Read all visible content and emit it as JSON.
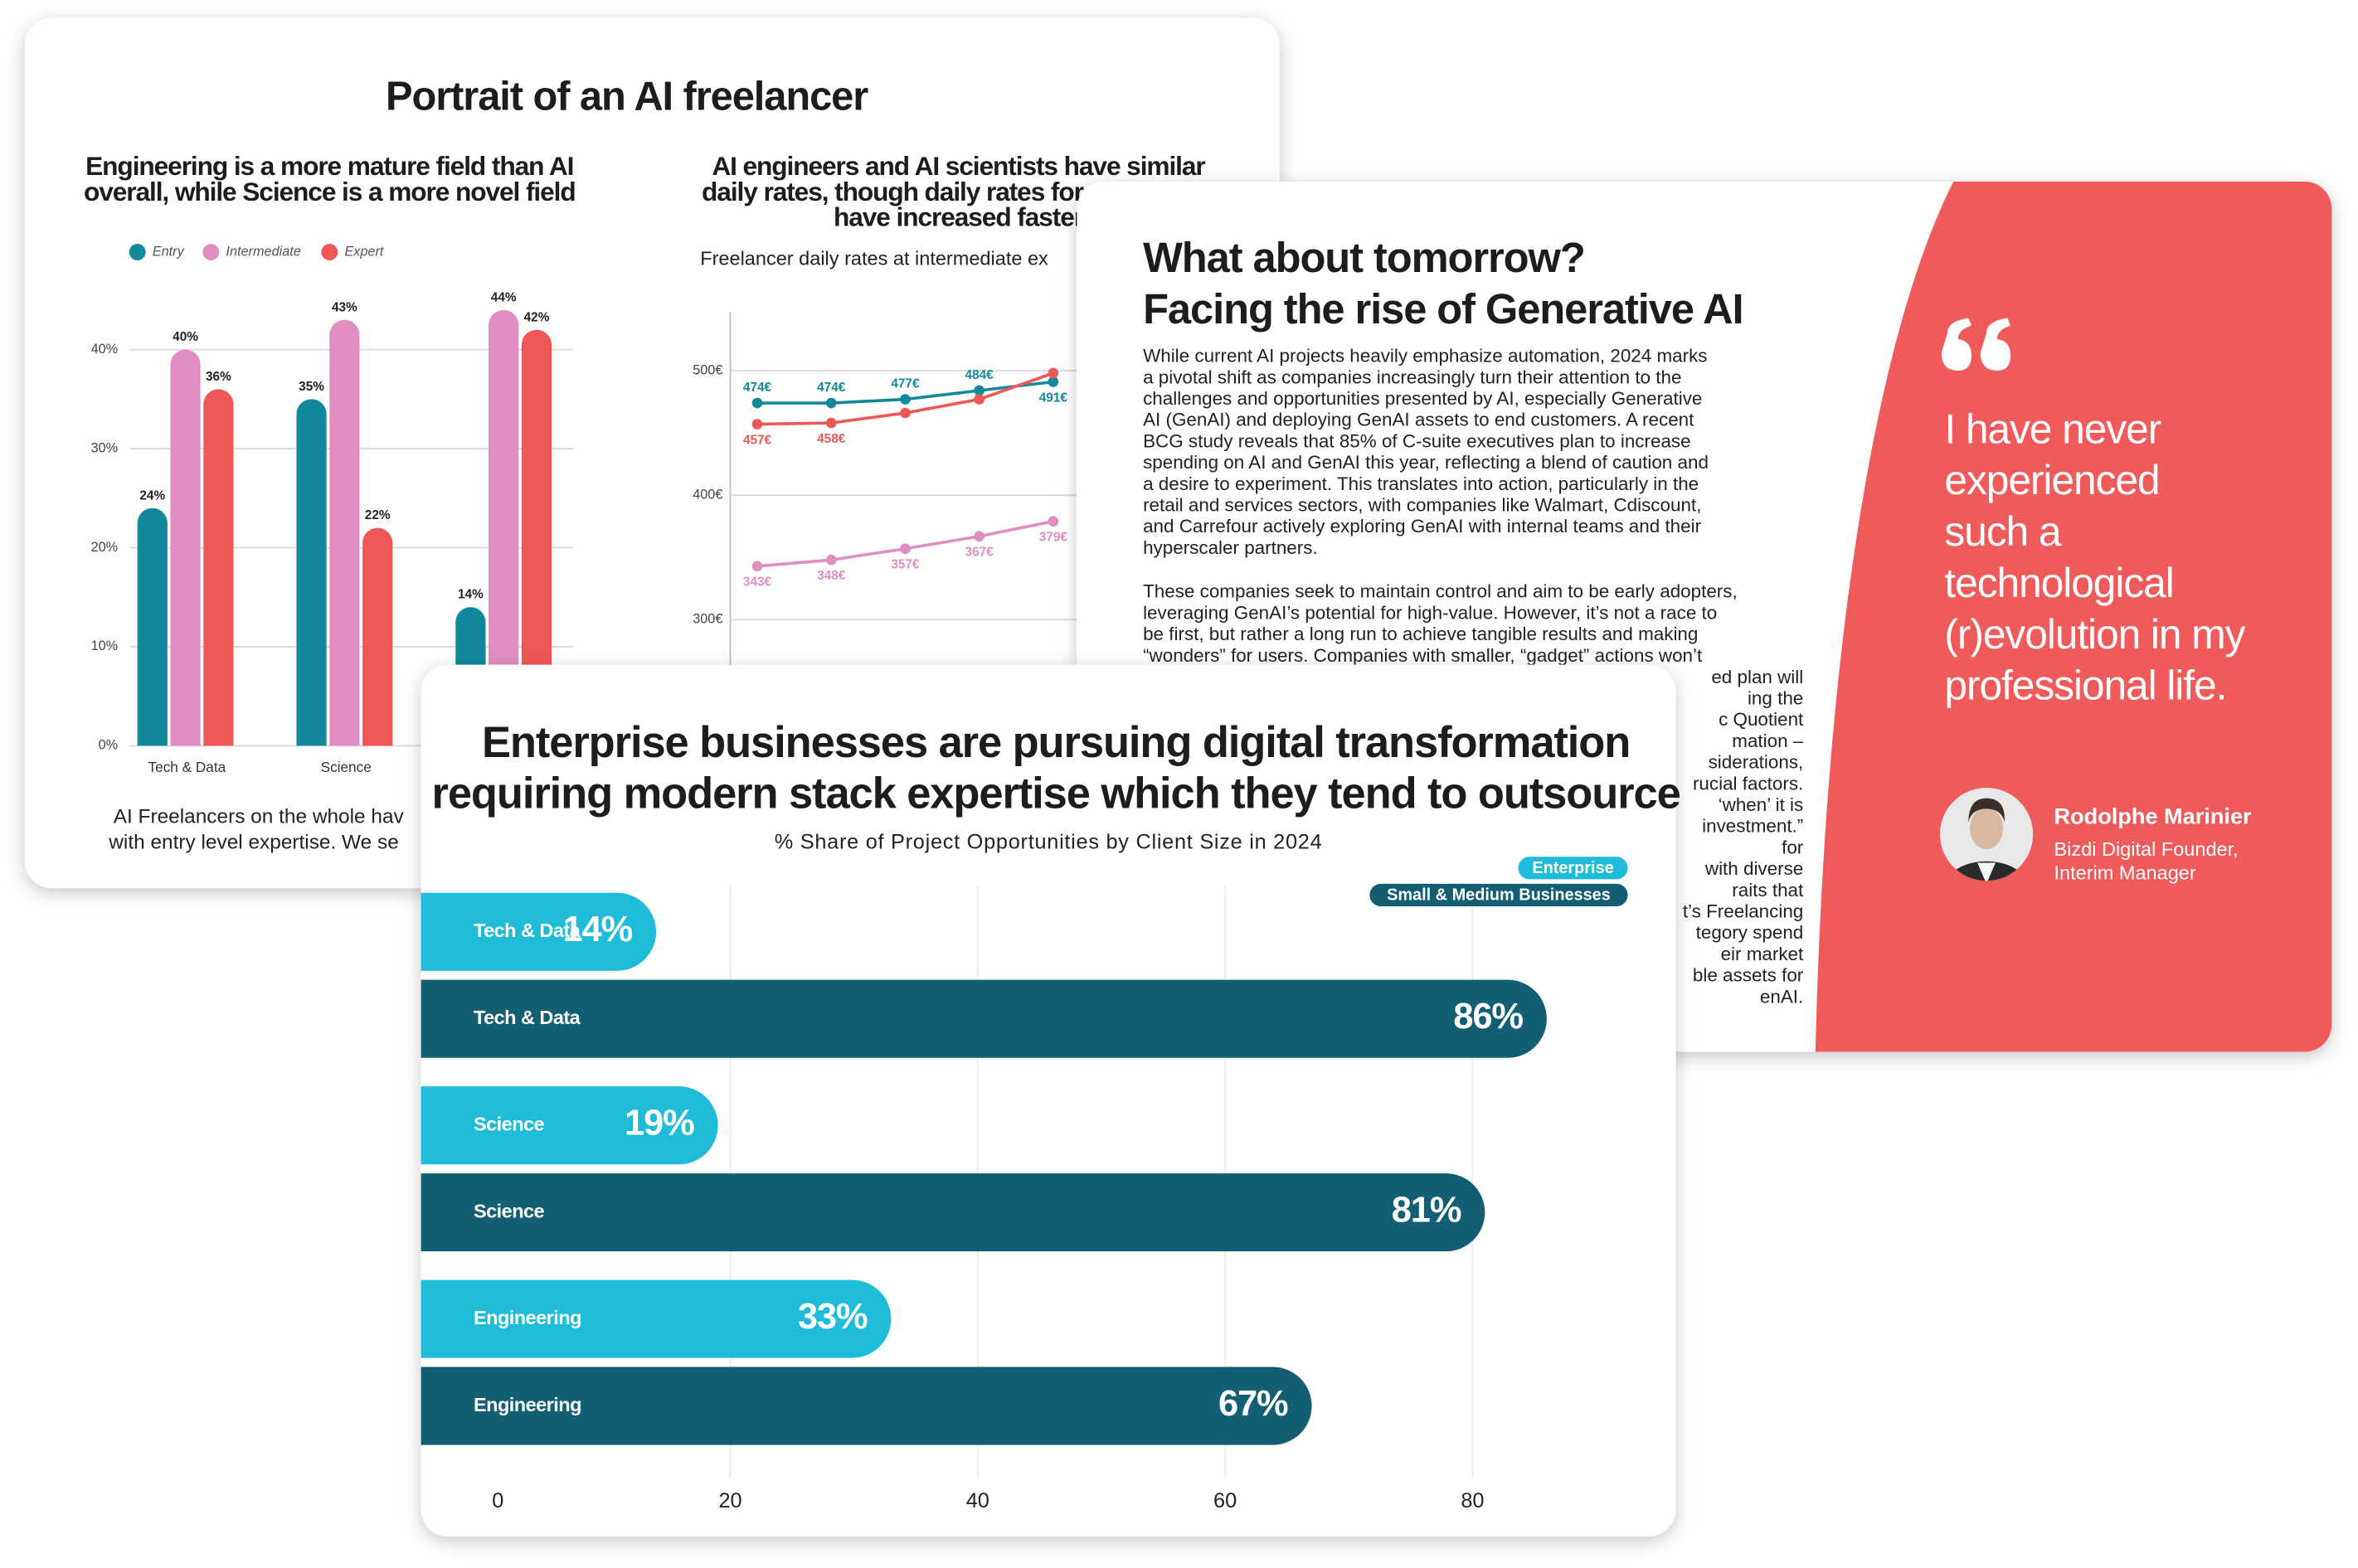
{
  "back_slide": {
    "title": "Portrait of an AI freelancer",
    "footer_lines": [
      "AI Freelancers on the whole hav",
      "with entry level expertise. We se"
    ]
  },
  "article": {
    "title_lines": [
      "What about tomorrow?",
      "Facing the rise of Generative AI"
    ],
    "paragraph_1": [
      "While current AI projects heavily emphasize automation, 2024 marks",
      "a pivotal shift as companies increasingly turn their attention to the",
      "challenges and opportunities presented by AI, especially Generative",
      "AI (GenAI) and deploying GenAI assets to end customers. A recent",
      "BCG study reveals that 85% of C-suite executives plan to increase",
      "spending on AI and GenAI this year, reflecting a blend of caution and",
      "a desire to experiment. This translates into action, particularly in the",
      "retail and services sectors, with companies like Walmart, Cdiscount,",
      "and Carrefour actively exploring GenAI with internal teams and their",
      "hyperscaler partners."
    ],
    "paragraph_2": [
      "These companies seek to maintain control and aim to be early adopters,",
      "leveraging GenAI’s potential for high-value. However, it’s not a race to",
      "be first, but rather a long run to achieve tangible results and making",
      "“wonders” for users. Companies with smaller, “gadget” actions won’t"
    ],
    "paragraph_2_fragments": [
      "ed plan will",
      "ing the",
      "c Quotient",
      "mation –",
      "siderations,",
      "rucial factors.",
      "‘when’ it is",
      "investment.”",
      "for",
      "with diverse",
      "raits that",
      "t’s Freelancing",
      "tegory spend",
      "eir market",
      "ble assets for",
      "enAI."
    ]
  },
  "quote": {
    "lines": [
      "I have never",
      "experienced",
      "such a",
      "technological",
      "(r)evolution in my",
      "professional life."
    ],
    "author": "Rodolphe Marinier",
    "role_lines": [
      "Bizdi Digital Founder,",
      "Interim Manager"
    ]
  },
  "chart_data": [
    {
      "type": "bar",
      "title": [
        "Engineering is a more mature field than AI",
        "overall, while Science is a more novel field"
      ],
      "categories": [
        "Tech & Data",
        "Science",
        null
      ],
      "series": [
        {
          "name": "Entry",
          "color": "#12899b",
          "values": [
            24,
            35,
            14
          ],
          "value_labels": [
            "24%",
            "35%",
            "14%"
          ]
        },
        {
          "name": "Intermediate",
          "color": "#e08ec2",
          "values": [
            40,
            43,
            44
          ],
          "value_labels": [
            "40%",
            "43%",
            "44%"
          ]
        },
        {
          "name": "Expert",
          "color": "#ef5757",
          "values": [
            36,
            22,
            42
          ],
          "value_labels": [
            "36%",
            "22%",
            "42%"
          ]
        }
      ],
      "ylim": [
        0,
        45
      ],
      "yticks": [
        {
          "value": 0,
          "label": "0%"
        },
        {
          "value": 10,
          "label": "10%"
        },
        {
          "value": 20,
          "label": "20%"
        },
        {
          "value": 30,
          "label": "30%"
        },
        {
          "value": 40,
          "label": "40%"
        }
      ],
      "grid": true,
      "legend": "top-left"
    },
    {
      "type": "line",
      "title": [
        "AI engineers and AI scientists have similar",
        "daily rates, though daily rates for",
        "have increased faster"
      ],
      "subtitle": "Freelancer daily rates at intermediate ex",
      "categories": [
        null,
        null,
        null,
        null,
        null
      ],
      "series": [
        {
          "color": "#12899b",
          "values": [
            474,
            474,
            477,
            484,
            491
          ],
          "value_labels": [
            "474€",
            "474€",
            "477€",
            "484€",
            "491€"
          ]
        },
        {
          "color": "#ef5757",
          "values": [
            457,
            458,
            466,
            477,
            498
          ],
          "value_labels": [
            "457€",
            "458€",
            null,
            null,
            null
          ]
        },
        {
          "color": "#e08ec2",
          "values": [
            343,
            348,
            357,
            367,
            379
          ],
          "value_labels": [
            "343€",
            "348€",
            "357€",
            "367€",
            "379€"
          ]
        }
      ],
      "ylim": [
        250,
        547
      ],
      "yticks": [
        {
          "value": 300,
          "label": "300€"
        },
        {
          "value": 400,
          "label": "400€"
        },
        {
          "value": 500,
          "label": "500€"
        }
      ],
      "grid": true
    },
    {
      "type": "hbar",
      "title": [
        "Enterprise businesses are pursuing digital transformation",
        "requiring modern stack expertise which they tend to outsource"
      ],
      "subtitle": "% Share of Project Opportunities by Client Size in 2024",
      "categories": [
        "Tech & Data",
        "Science",
        "Engineering"
      ],
      "series": [
        {
          "name": "Enterprise",
          "color": "#1fbcd9",
          "values": [
            14,
            19,
            33
          ],
          "value_labels": [
            "14%",
            "19%",
            "33%"
          ]
        },
        {
          "name": "Small & Medium Businesses",
          "color": "#135e73",
          "values": [
            86,
            81,
            67
          ],
          "value_labels": [
            "86%",
            "81%",
            "67%"
          ]
        }
      ],
      "xlim": [
        -5,
        90
      ],
      "xticks": [
        0,
        20,
        40,
        60,
        80
      ],
      "grid": true,
      "legend": "top-right"
    }
  ]
}
